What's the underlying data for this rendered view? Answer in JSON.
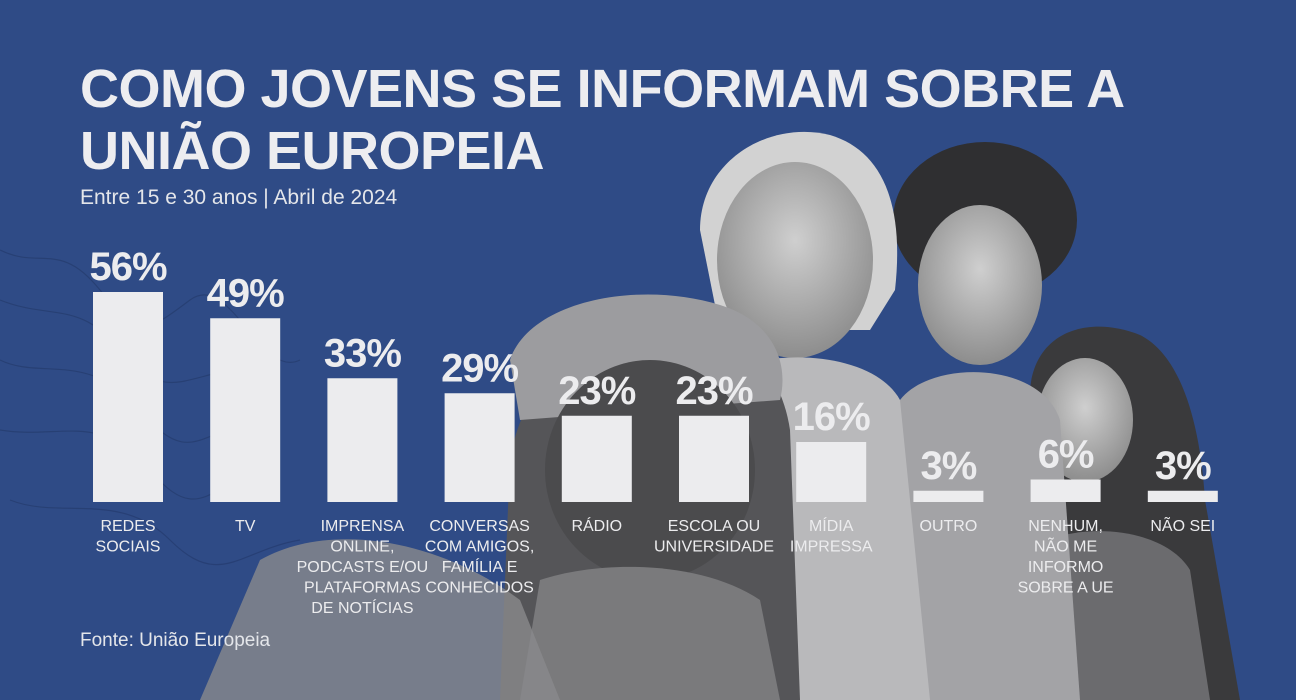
{
  "colors": {
    "background": "#2f4b86",
    "bar": "#ececee",
    "text": "#ececee"
  },
  "chart_data": {
    "type": "bar",
    "title": "COMO JOVENS SE INFORMAM SOBRE A UNIÃO EUROPEIA",
    "title_lines": [
      "COMO JOVENS SE INFORMAM SOBRE A",
      "UNIÃO EUROPEIA"
    ],
    "subtitle": "Entre 15 e 30 anos | Abril de 2024",
    "source": "Fonte: União Europeia",
    "categories": [
      [
        "REDES",
        "SOCIAIS"
      ],
      [
        "TV"
      ],
      [
        "IMPRENSA",
        "ONLINE,",
        "PODCASTS E/OU",
        "PLATAFORMAS",
        "DE NOTÍCIAS"
      ],
      [
        "CONVERSAS",
        "COM AMIGOS,",
        "FAMÍLIA E",
        "CONHECIDOS"
      ],
      [
        "RÁDIO"
      ],
      [
        "ESCOLA OU",
        "UNIVERSIDADE"
      ],
      [
        "MÍDIA",
        "IMPRESSA"
      ],
      [
        "OUTRO"
      ],
      [
        "NENHUM,",
        "NÃO ME",
        "INFORMO",
        "SOBRE A UE"
      ],
      [
        "NÃO SEI"
      ]
    ],
    "values": [
      56,
      49,
      33,
      29,
      23,
      23,
      16,
      3,
      6,
      3
    ],
    "value_labels": [
      "56%",
      "49%",
      "33%",
      "29%",
      "23%",
      "23%",
      "16%",
      "3%",
      "6%",
      "3%"
    ],
    "unit": "%",
    "ylim": [
      0,
      56
    ],
    "grid": false,
    "legend": "none"
  }
}
